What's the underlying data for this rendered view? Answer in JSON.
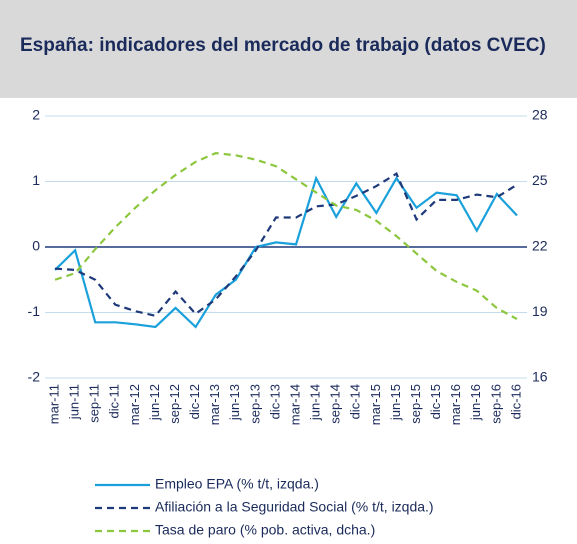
{
  "chart_data": {
    "type": "line",
    "title": "España: indicadores del mercado de trabajo (datos CVEC)",
    "categories": [
      "mar-11",
      "jun-11",
      "sep-11",
      "dic-11",
      "mar-12",
      "jun-12",
      "sep-12",
      "dic-12",
      "mar-13",
      "jun-13",
      "sep-13",
      "dic-13",
      "mar-14",
      "jun-14",
      "sep-14",
      "dic-14",
      "mar-15",
      "jun-15",
      "sep-15",
      "dic-15",
      "mar-16",
      "jun-16",
      "sep-16",
      "dic-16"
    ],
    "ylim": [
      -2,
      2
    ],
    "yticks": [
      -2,
      -1,
      0,
      1,
      2
    ],
    "y2lim": [
      16,
      28
    ],
    "y2ticks": [
      16,
      19,
      22,
      25,
      28
    ],
    "grid": true,
    "series": [
      {
        "name": "Empleo EPA (% t/t, izqda.)",
        "color": "#1aa0db",
        "dashed": false,
        "values": [
          -0.35,
          -0.05,
          -1.15,
          -1.15,
          -1.18,
          -1.22,
          -0.93,
          -1.22,
          -0.73,
          -0.5,
          0.0,
          0.07,
          0.04,
          1.05,
          0.46,
          0.97,
          0.52,
          1.05,
          0.6,
          0.83,
          0.79,
          0.25,
          0.81,
          0.48
        ]
      },
      {
        "name": "Afiliación a la Seguridad Social (% t/t, izqda.)",
        "color": "#1f3a7a",
        "dashed": true,
        "values": [
          -0.33,
          -0.35,
          -0.5,
          -0.88,
          -0.98,
          -1.05,
          -0.68,
          -1.02,
          -0.8,
          -0.45,
          -0.05,
          0.45,
          0.45,
          0.62,
          0.65,
          0.78,
          0.93,
          1.12,
          0.42,
          0.72,
          0.72,
          0.8,
          0.76,
          0.95
        ]
      },
      {
        "name": "Tasa de paro (% pob. activa, dcha.)",
        "color": "#8dc63f",
        "dashed": true,
        "axis": "y2",
        "values": [
          20.5,
          20.8,
          21.9,
          22.9,
          23.8,
          24.6,
          25.3,
          25.9,
          26.3,
          26.2,
          26.0,
          25.7,
          25.1,
          24.5,
          23.9,
          23.7,
          23.2,
          22.5,
          21.7,
          20.9,
          20.4,
          20.0,
          19.2,
          18.7
        ]
      }
    ]
  }
}
